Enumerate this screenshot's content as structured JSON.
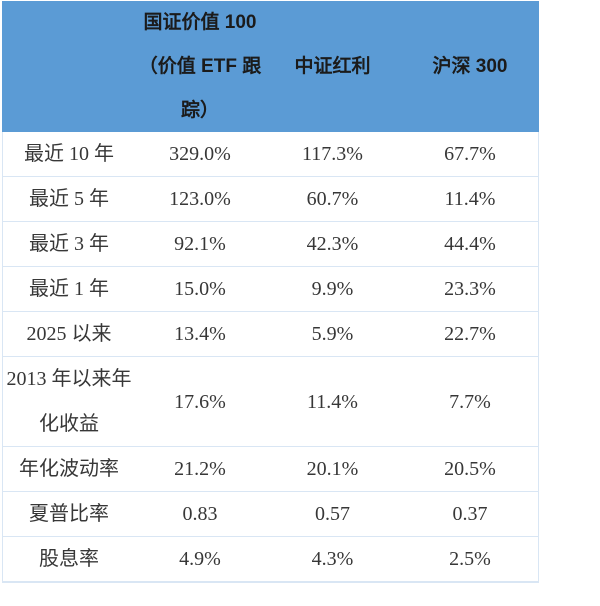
{
  "colors": {
    "header_bg": "#5B9BD5",
    "header_text": "#1b1b1b",
    "body_text": "#373737",
    "row_border": "#D9E6F4",
    "page_bg": "#ffffff"
  },
  "table": {
    "header": {
      "metric_col": "",
      "col1_lines": [
        "国证价值 100",
        "（价值 ETF 跟",
        "踪）"
      ],
      "col2": "中证红利",
      "col3": "沪深 300"
    },
    "rows": [
      {
        "label_lines": [
          "最近 10 年"
        ],
        "v1": "329.0%",
        "v2": "117.3%",
        "v3": "67.7%"
      },
      {
        "label_lines": [
          "最近 5 年"
        ],
        "v1": "123.0%",
        "v2": "60.7%",
        "v3": "11.4%"
      },
      {
        "label_lines": [
          "最近 3 年"
        ],
        "v1": "92.1%",
        "v2": "42.3%",
        "v3": "44.4%"
      },
      {
        "label_lines": [
          "最近 1 年"
        ],
        "v1": "15.0%",
        "v2": "9.9%",
        "v3": "23.3%"
      },
      {
        "label_lines": [
          "2025 以来"
        ],
        "v1": "13.4%",
        "v2": "5.9%",
        "v3": "22.7%"
      },
      {
        "label_lines": [
          "2013 年以来年",
          "化收益"
        ],
        "v1": "17.6%",
        "v2": "11.4%",
        "v3": "7.7%"
      },
      {
        "label_lines": [
          "年化波动率"
        ],
        "v1": "21.2%",
        "v2": "20.1%",
        "v3": "20.5%"
      },
      {
        "label_lines": [
          "夏普比率"
        ],
        "v1": "0.83",
        "v2": "0.57",
        "v3": "0.37"
      },
      {
        "label_lines": [
          "股息率"
        ],
        "v1": "4.9%",
        "v2": "4.3%",
        "v3": "2.5%"
      }
    ]
  }
}
